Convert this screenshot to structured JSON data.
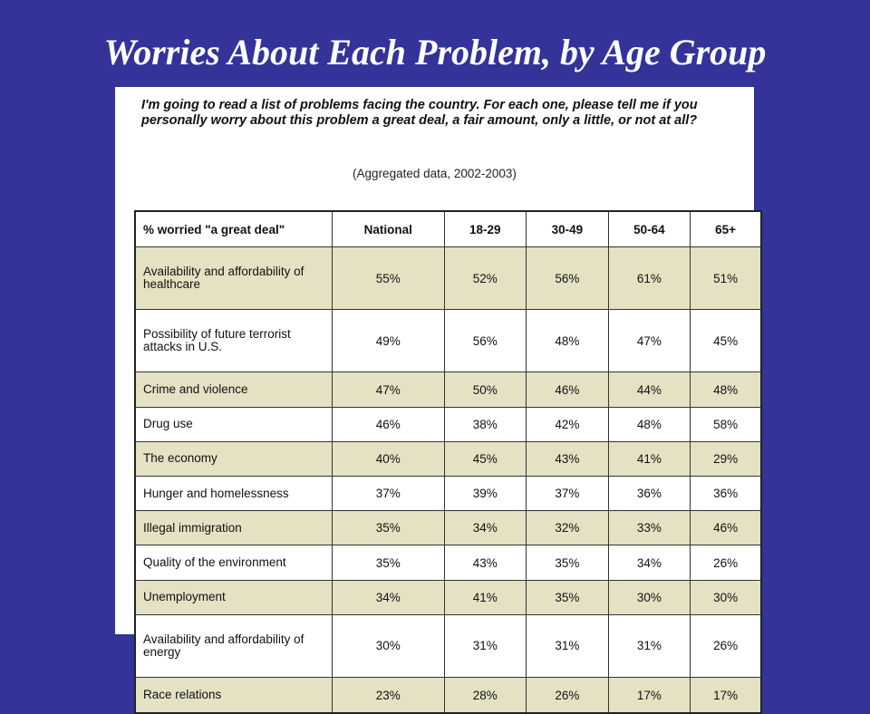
{
  "title": "Worries About Each Problem, by Age Group",
  "question": "I'm going to read a list of problems facing the country. For each one, please tell me if you personally worry about this problem a great deal, a fair amount, only a little, or not at all?",
  "note": "(Aggregated data, 2002-2003)",
  "table": {
    "headers": [
      "% worried \"a great deal\"",
      "National",
      "18-29",
      "30-49",
      "50-64",
      "65+"
    ],
    "rows": [
      {
        "label": "Availability and affordability of healthcare",
        "values": [
          "55%",
          "52%",
          "56%",
          "61%",
          "51%"
        ]
      },
      {
        "label": "Possibility of future terrorist attacks in U.S.",
        "values": [
          "49%",
          "56%",
          "48%",
          "47%",
          "45%"
        ]
      },
      {
        "label": "Crime and violence",
        "values": [
          "47%",
          "50%",
          "46%",
          "44%",
          "48%"
        ]
      },
      {
        "label": "Drug use",
        "values": [
          "46%",
          "38%",
          "42%",
          "48%",
          "58%"
        ]
      },
      {
        "label": "The economy",
        "values": [
          "40%",
          "45%",
          "43%",
          "41%",
          "29%"
        ]
      },
      {
        "label": "Hunger and homelessness",
        "values": [
          "37%",
          "39%",
          "37%",
          "36%",
          "36%"
        ]
      },
      {
        "label": "Illegal immigration",
        "values": [
          "35%",
          "34%",
          "32%",
          "33%",
          "46%"
        ]
      },
      {
        "label": "Quality of the environment",
        "values": [
          "35%",
          "43%",
          "35%",
          "34%",
          "26%"
        ]
      },
      {
        "label": "Unemployment",
        "values": [
          "34%",
          "41%",
          "35%",
          "30%",
          "30%"
        ]
      },
      {
        "label": "Availability and affordability of energy",
        "values": [
          "30%",
          "31%",
          "31%",
          "31%",
          "26%"
        ]
      },
      {
        "label": "Race relations",
        "values": [
          "23%",
          "28%",
          "26%",
          "17%",
          "17%"
        ]
      }
    ]
  },
  "colors": {
    "background": "#333399",
    "row_shade": "#e5e2c3",
    "panel": "#ffffff"
  }
}
